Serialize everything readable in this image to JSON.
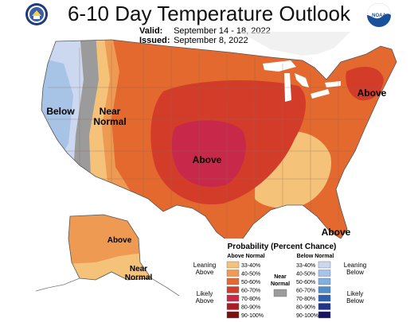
{
  "header": {
    "title": "6-10 Day Temperature Outlook",
    "valid_label": "Valid:",
    "valid_value": "September 14 - 18, 2022",
    "issued_label": "Issued:",
    "issued_value": "September 8, 2022",
    "left_logo_icon": "department-of-commerce-seal-icon",
    "right_logo_icon": "noaa-logo-icon",
    "right_logo_text": "NOAA"
  },
  "map_labels": {
    "west_below": "Below",
    "west_near": "Near",
    "west_normal": "Normal",
    "central_above": "Above",
    "northeast_above": "Above",
    "florida_above": "Above",
    "alaska_above": "Above",
    "alaska_near": "Near",
    "alaska_normal": "Normal"
  },
  "legend": {
    "title": "Probability (Percent Chance)",
    "above_header": "Above Normal",
    "below_header": "Below Normal",
    "leaning_above_1": "Leaning",
    "leaning_above_2": "Above",
    "likely_above_1": "Likely",
    "likely_above_2": "Above",
    "near_1": "Near",
    "near_2": "Normal",
    "leaning_below_1": "Leaning",
    "leaning_below_2": "Below",
    "likely_below_1": "Likely",
    "likely_below_2": "Below",
    "ranges": [
      "33-40%",
      "40-50%",
      "50-60%",
      "60-70%",
      "70-80%",
      "80-90%",
      "90-100%"
    ],
    "above_colors": [
      "#f5c27a",
      "#ee9a52",
      "#e4692f",
      "#d43c2a",
      "#c8294b",
      "#a91d27",
      "#7a1010"
    ],
    "below_colors": [
      "#cbd8ef",
      "#a7c3e6",
      "#7fb0de",
      "#4e8ecc",
      "#2f5fb0",
      "#23348a",
      "#16165e"
    ],
    "near_color": "#9b9b9b"
  }
}
